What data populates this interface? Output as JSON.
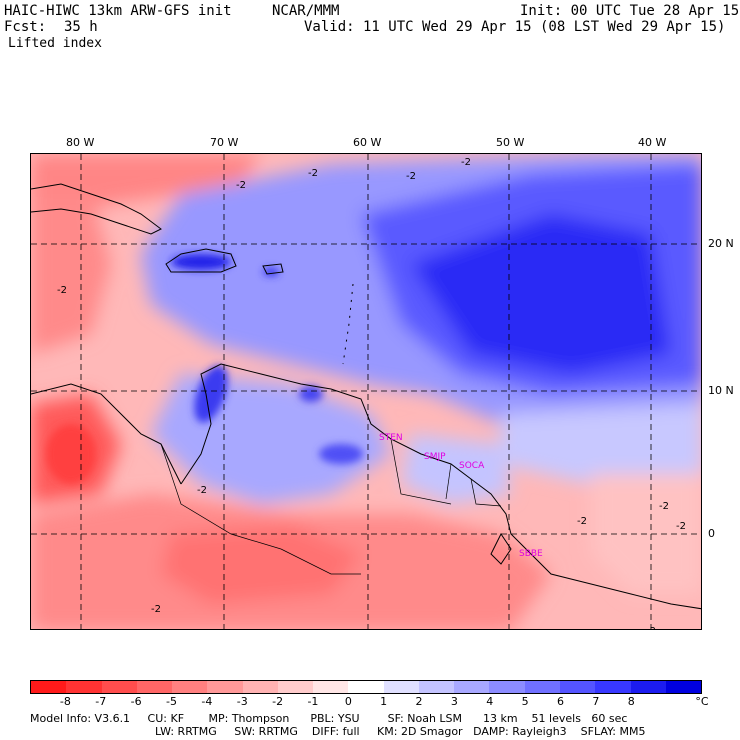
{
  "header": {
    "model_title": "HAIC-HIWC 13km ARW-GFS init",
    "org": "NCAR/MMM",
    "init": "Init: 00 UTC Tue 28 Apr 15",
    "fcst_label": "Fcst:",
    "fcst_value": "35 h",
    "valid": "Valid: 11 UTC Wed 29 Apr 15 (08 LST Wed 29 Apr 15)",
    "field": "Lifted index"
  },
  "map": {
    "lon_labels": [
      "80 W",
      "70 W",
      "60 W",
      "50 W",
      "40 W"
    ],
    "lat_labels": [
      "20 N",
      "10 N",
      "0"
    ],
    "stations": [
      "STEN",
      "SMJP",
      "SOCA",
      "SBBE"
    ],
    "contour_labels": [
      "-2",
      "-2",
      "-2",
      "-2",
      "-2",
      "-2",
      "-2",
      "-2",
      "-2",
      "-2",
      "-2"
    ]
  },
  "legend": {
    "labels": [
      "-8",
      "-7",
      "-6",
      "-5",
      "-4",
      "-3",
      "-2",
      "-1",
      "0",
      "1",
      "2",
      "3",
      "4",
      "5",
      "6",
      "7",
      "8"
    ],
    "unit": "°C",
    "colors": [
      "#ff1a1a",
      "#ff3333",
      "#ff4d4d",
      "#ff6666",
      "#ff8080",
      "#ff9999",
      "#ffb3b3",
      "#ffcccc",
      "#ffe6e6",
      "#ffffff",
      "#e0e0ff",
      "#c4c4ff",
      "#a8a8ff",
      "#8c8cff",
      "#7070ff",
      "#5454ff",
      "#3838ff",
      "#1c1cf0",
      "#0000e0"
    ]
  },
  "footer": {
    "line1": "Model Info: V3.6.1     CU: KF       MP: Thompson      PBL: YSU        SF: Noah LSM      13 km    51 levels   60 sec",
    "line2": "LW: RRTMG     SW: RRTMG    DIFF: full     KM: 2D Smagor   DAMP: Rayleigh3    SFLAY: MM5"
  }
}
